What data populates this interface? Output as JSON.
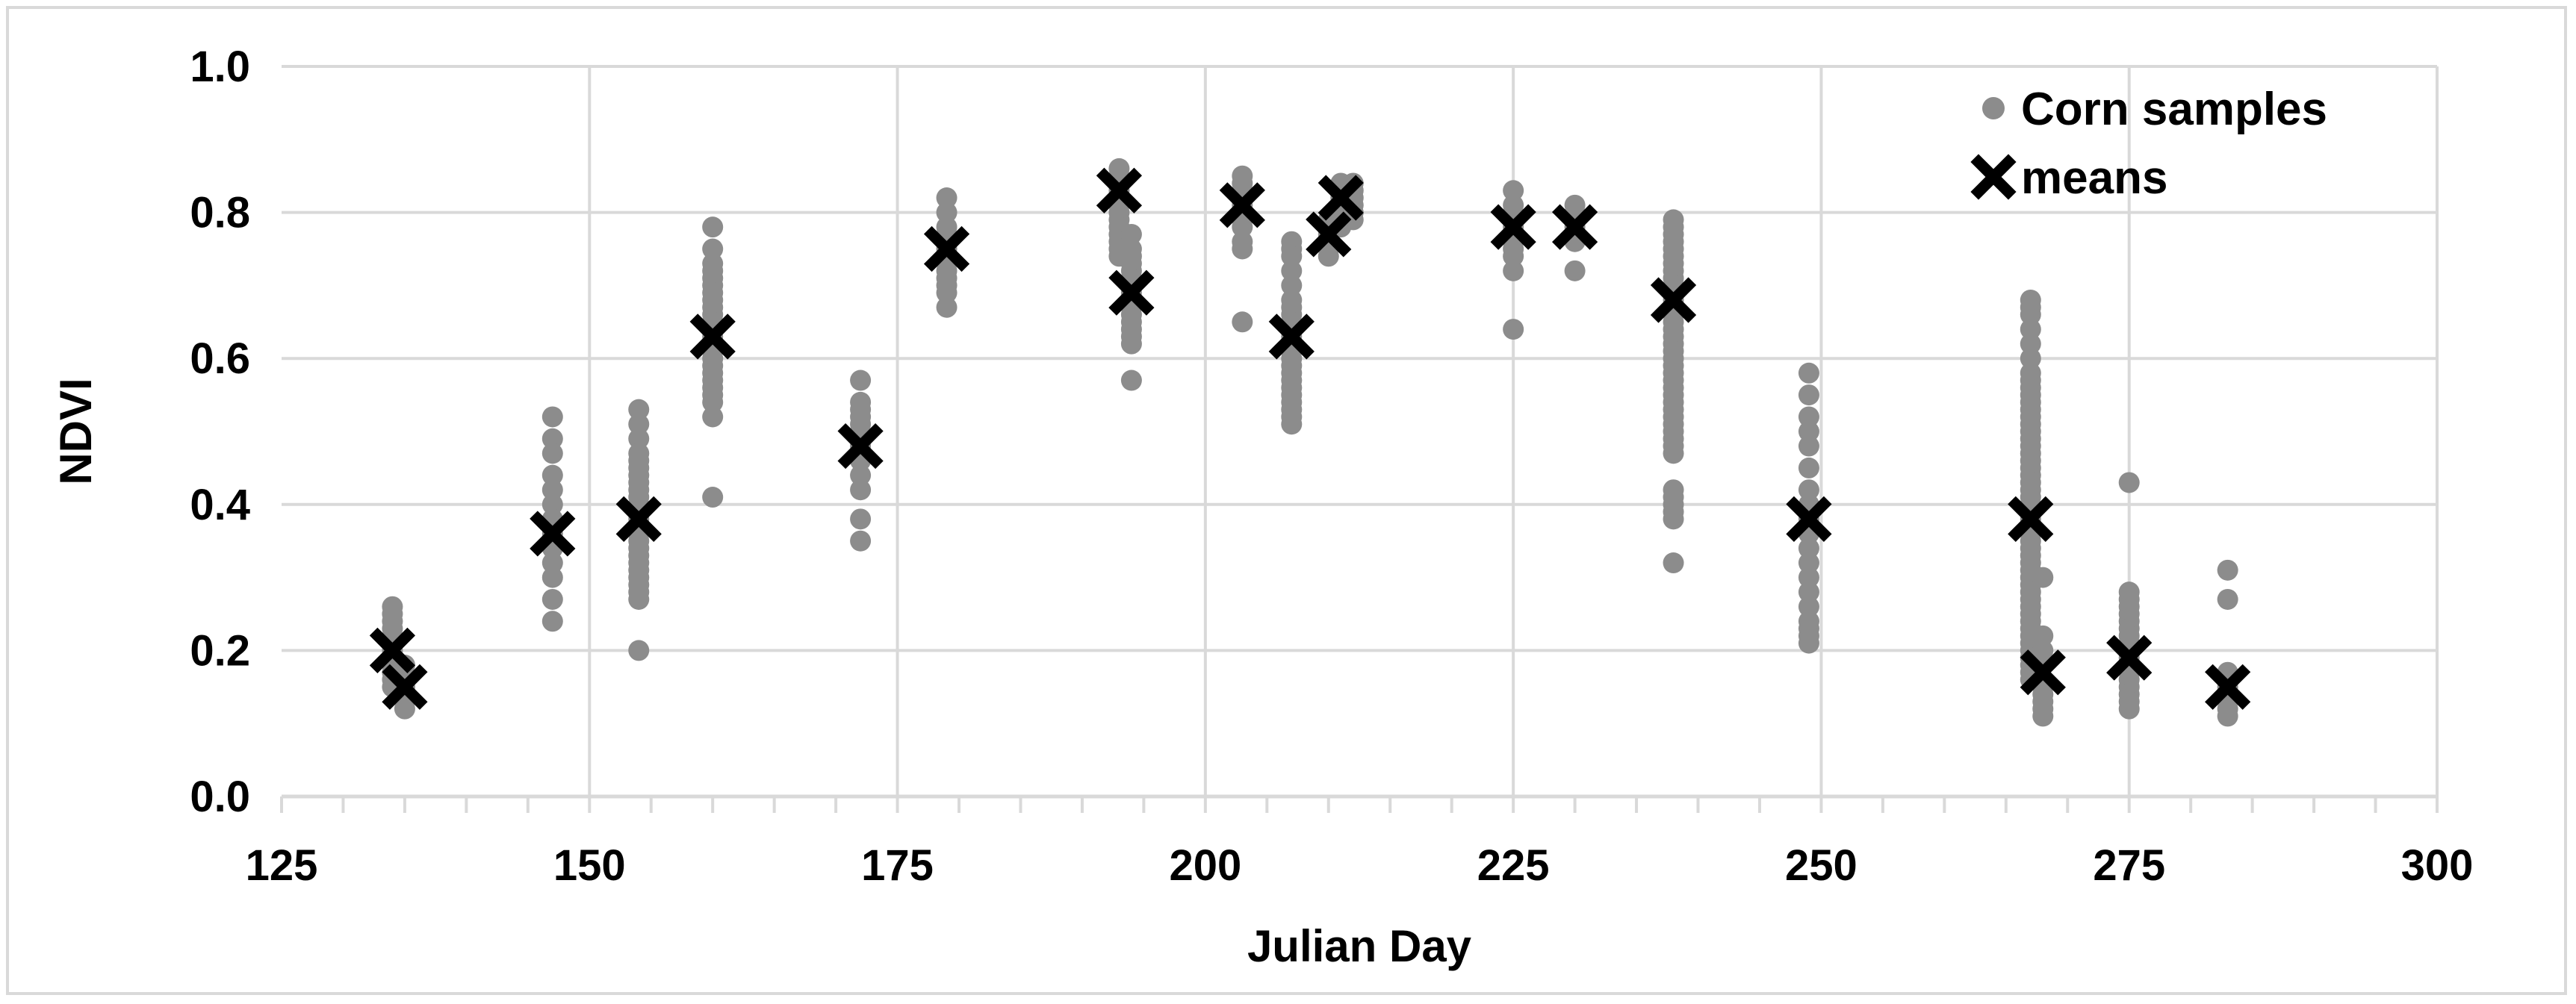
{
  "chart_data": {
    "type": "scatter",
    "xlabel": "Julian Day",
    "ylabel": "NDVI",
    "xlim": [
      125,
      300
    ],
    "ylim": [
      0.0,
      1.0
    ],
    "x_ticks": [
      "125",
      "150",
      "175",
      "200",
      "225",
      "250",
      "275",
      "300"
    ],
    "y_ticks": [
      "0.0",
      "0.2",
      "0.4",
      "0.6",
      "0.8",
      "1.0"
    ],
    "grid": true,
    "legend_position": "top-right",
    "colors": {
      "samples": "#8c8c8c",
      "means": "#000000",
      "grid": "#d9d9d9"
    },
    "series": [
      {
        "name": "Corn samples",
        "marker": "circle",
        "groups": [
          {
            "x": 134,
            "y": [
              0.26,
              0.25,
              0.24,
              0.23,
              0.22,
              0.21,
              0.2,
              0.19,
              0.18,
              0.17,
              0.16,
              0.15
            ]
          },
          {
            "x": 135,
            "y": [
              0.18,
              0.16,
              0.15,
              0.14,
              0.13,
              0.12
            ]
          },
          {
            "x": 147,
            "y": [
              0.52,
              0.49,
              0.47,
              0.44,
              0.42,
              0.4,
              0.38,
              0.36,
              0.34,
              0.32,
              0.3,
              0.27,
              0.24
            ]
          },
          {
            "x": 154,
            "y": [
              0.53,
              0.51,
              0.49,
              0.47,
              0.46,
              0.45,
              0.44,
              0.43,
              0.42,
              0.41,
              0.4,
              0.39,
              0.38,
              0.37,
              0.36,
              0.35,
              0.34,
              0.33,
              0.32,
              0.31,
              0.3,
              0.29,
              0.28,
              0.27,
              0.2
            ]
          },
          {
            "x": 160,
            "y": [
              0.78,
              0.75,
              0.73,
              0.72,
              0.71,
              0.7,
              0.69,
              0.68,
              0.67,
              0.66,
              0.65,
              0.64,
              0.63,
              0.62,
              0.61,
              0.6,
              0.59,
              0.58,
              0.57,
              0.56,
              0.55,
              0.54,
              0.52,
              0.41
            ]
          },
          {
            "x": 172,
            "y": [
              0.57,
              0.54,
              0.53,
              0.52,
              0.51,
              0.5,
              0.49,
              0.48,
              0.47,
              0.46,
              0.44,
              0.42,
              0.38,
              0.35
            ]
          },
          {
            "x": 179,
            "y": [
              0.82,
              0.8,
              0.78,
              0.77,
              0.76,
              0.75,
              0.74,
              0.73,
              0.72,
              0.71,
              0.7,
              0.69,
              0.67
            ]
          },
          {
            "x": 193,
            "y": [
              0.86,
              0.85,
              0.84,
              0.83,
              0.82,
              0.81,
              0.8,
              0.79,
              0.78,
              0.77,
              0.76,
              0.75,
              0.74
            ]
          },
          {
            "x": 194,
            "y": [
              0.77,
              0.75,
              0.74,
              0.73,
              0.72,
              0.71,
              0.7,
              0.69,
              0.68,
              0.67,
              0.66,
              0.65,
              0.64,
              0.63,
              0.62,
              0.57
            ]
          },
          {
            "x": 203,
            "y": [
              0.85,
              0.84,
              0.83,
              0.82,
              0.81,
              0.8,
              0.79,
              0.78,
              0.76,
              0.75,
              0.65
            ]
          },
          {
            "x": 207,
            "y": [
              0.76,
              0.75,
              0.74,
              0.72,
              0.7,
              0.68,
              0.67,
              0.66,
              0.65,
              0.64,
              0.63,
              0.62,
              0.61,
              0.6,
              0.59,
              0.58,
              0.57,
              0.56,
              0.55,
              0.54,
              0.53,
              0.52,
              0.51
            ]
          },
          {
            "x": 210,
            "y": [
              0.79,
              0.78,
              0.77,
              0.76,
              0.75,
              0.74
            ]
          },
          {
            "x": 211,
            "y": [
              0.84,
              0.83,
              0.82,
              0.81,
              0.8,
              0.79,
              0.78
            ]
          },
          {
            "x": 212,
            "y": [
              0.84,
              0.83,
              0.82,
              0.81,
              0.8,
              0.79
            ]
          },
          {
            "x": 225,
            "y": [
              0.83,
              0.81,
              0.8,
              0.79,
              0.78,
              0.77,
              0.76,
              0.75,
              0.74,
              0.72,
              0.64
            ]
          },
          {
            "x": 230,
            "y": [
              0.81,
              0.8,
              0.79,
              0.78,
              0.77,
              0.76,
              0.72
            ]
          },
          {
            "x": 238,
            "y": [
              0.79,
              0.78,
              0.77,
              0.76,
              0.75,
              0.74,
              0.73,
              0.72,
              0.71,
              0.7,
              0.69,
              0.68,
              0.67,
              0.66,
              0.65,
              0.64,
              0.63,
              0.62,
              0.61,
              0.6,
              0.59,
              0.58,
              0.57,
              0.56,
              0.55,
              0.54,
              0.53,
              0.52,
              0.51,
              0.5,
              0.49,
              0.48,
              0.47,
              0.42,
              0.41,
              0.4,
              0.39,
              0.38,
              0.32
            ]
          },
          {
            "x": 249,
            "y": [
              0.58,
              0.55,
              0.52,
              0.5,
              0.48,
              0.45,
              0.42,
              0.4,
              0.38,
              0.36,
              0.34,
              0.32,
              0.3,
              0.28,
              0.26,
              0.24,
              0.23,
              0.22,
              0.21
            ]
          },
          {
            "x": 267,
            "y": [
              0.68,
              0.67,
              0.66,
              0.64,
              0.62,
              0.6,
              0.58,
              0.57,
              0.56,
              0.55,
              0.54,
              0.53,
              0.52,
              0.51,
              0.5,
              0.49,
              0.48,
              0.47,
              0.46,
              0.45,
              0.44,
              0.43,
              0.42,
              0.41,
              0.4,
              0.39,
              0.38,
              0.37,
              0.36,
              0.35,
              0.34,
              0.33,
              0.32,
              0.31,
              0.3,
              0.29,
              0.28,
              0.27,
              0.26,
              0.25,
              0.24,
              0.23,
              0.22,
              0.21,
              0.2,
              0.19,
              0.18,
              0.17,
              0.16
            ]
          },
          {
            "x": 268,
            "y": [
              0.3,
              0.22,
              0.2,
              0.18,
              0.16,
              0.15,
              0.14,
              0.13,
              0.12,
              0.11
            ]
          },
          {
            "x": 275,
            "y": [
              0.43,
              0.28,
              0.27,
              0.26,
              0.25,
              0.24,
              0.23,
              0.22,
              0.21,
              0.2,
              0.19,
              0.18,
              0.17,
              0.16,
              0.15,
              0.14,
              0.13,
              0.12
            ]
          },
          {
            "x": 283,
            "y": [
              0.31,
              0.27,
              0.17,
              0.16,
              0.15,
              0.14,
              0.13,
              0.12,
              0.11
            ]
          }
        ]
      },
      {
        "name": "means",
        "marker": "x",
        "points": [
          [
            134,
            0.2
          ],
          [
            135,
            0.15
          ],
          [
            147,
            0.36
          ],
          [
            154,
            0.38
          ],
          [
            160,
            0.63
          ],
          [
            172,
            0.48
          ],
          [
            179,
            0.75
          ],
          [
            193,
            0.83
          ],
          [
            194,
            0.69
          ],
          [
            203,
            0.81
          ],
          [
            207,
            0.63
          ],
          [
            210,
            0.77
          ],
          [
            211,
            0.82
          ],
          [
            225,
            0.78
          ],
          [
            230,
            0.78
          ],
          [
            238,
            0.68
          ],
          [
            249,
            0.38
          ],
          [
            267,
            0.38
          ],
          [
            268,
            0.17
          ],
          [
            275,
            0.19
          ],
          [
            283,
            0.15
          ]
        ]
      }
    ]
  }
}
